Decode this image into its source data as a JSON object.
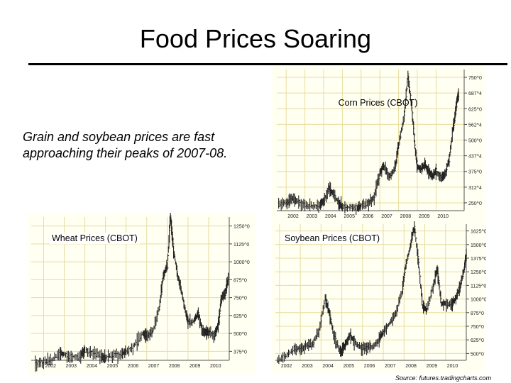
{
  "slide": {
    "title": "Food Prices Soaring",
    "subtitle": "Grain and soybean prices are fast approaching their peaks of 2007-08.",
    "source": "Source: futures.tradingcharts.com"
  },
  "colors": {
    "grid": "#e8dca0",
    "bars": "#222222",
    "background": "#fffff2"
  },
  "chart_data": [
    {
      "id": "corn",
      "type": "line",
      "title": "Corn Prices (CBOT)",
      "x": [
        2002,
        2003,
        2004,
        2005,
        2006,
        2007,
        2008,
        2009,
        2010
      ],
      "y_ticks": [
        "250^0",
        "312^4",
        "375^0",
        "437^4",
        "500^0",
        "562^4",
        "625^0",
        "687^4",
        "750^0"
      ],
      "ylim": [
        240,
        760
      ],
      "xlim": [
        2001.5,
        2011.5
      ],
      "series": [
        {
          "values": [
            [
              2001.6,
              262
            ],
            [
              2002.0,
              268
            ],
            [
              2002.3,
              285
            ],
            [
              2002.6,
              276
            ],
            [
              2003.0,
              262
            ],
            [
              2003.4,
              255
            ],
            [
              2003.8,
              258
            ],
            [
              2004.0,
              278
            ],
            [
              2004.3,
              320
            ],
            [
              2004.5,
              305
            ],
            [
              2004.8,
              268
            ],
            [
              2005.0,
              255
            ],
            [
              2005.4,
              252
            ],
            [
              2005.8,
              250
            ],
            [
              2006.0,
              260
            ],
            [
              2006.4,
              268
            ],
            [
              2006.7,
              290
            ],
            [
              2007.0,
              380
            ],
            [
              2007.2,
              405
            ],
            [
              2007.5,
              365
            ],
            [
              2007.8,
              395
            ],
            [
              2008.0,
              480
            ],
            [
              2008.3,
              590
            ],
            [
              2008.5,
              740
            ],
            [
              2008.7,
              620
            ],
            [
              2008.9,
              460
            ],
            [
              2009.0,
              400
            ],
            [
              2009.2,
              395
            ],
            [
              2009.4,
              410
            ],
            [
              2009.6,
              385
            ],
            [
              2009.8,
              365
            ],
            [
              2010.0,
              385
            ],
            [
              2010.3,
              360
            ],
            [
              2010.5,
              380
            ],
            [
              2010.7,
              430
            ],
            [
              2010.9,
              540
            ],
            [
              2011.0,
              585
            ],
            [
              2011.1,
              640
            ],
            [
              2011.2,
              670
            ]
          ]
        }
      ]
    },
    {
      "id": "wheat",
      "type": "line",
      "title": "Wheat Prices (CBOT)",
      "x": [
        2002,
        2003,
        2004,
        2005,
        2006,
        2007,
        2008,
        2009,
        2010
      ],
      "y_ticks": [
        "375^0",
        "500^0",
        "625^0",
        "750^0",
        "875^0",
        "1000^0",
        "1125^0",
        "1250^0"
      ],
      "ylim": [
        300,
        1280
      ],
      "xlim": [
        2001.4,
        2011.0
      ],
      "series": [
        {
          "values": [
            [
              2001.6,
              280
            ],
            [
              2002.0,
              285
            ],
            [
              2002.4,
              300
            ],
            [
              2002.8,
              350
            ],
            [
              2003.0,
              345
            ],
            [
              2003.4,
              320
            ],
            [
              2003.8,
              330
            ],
            [
              2004.0,
              370
            ],
            [
              2004.4,
              350
            ],
            [
              2004.8,
              320
            ],
            [
              2005.0,
              320
            ],
            [
              2005.4,
              335
            ],
            [
              2005.8,
              340
            ],
            [
              2006.0,
              360
            ],
            [
              2006.4,
              400
            ],
            [
              2006.8,
              480
            ],
            [
              2007.0,
              470
            ],
            [
              2007.3,
              500
            ],
            [
              2007.6,
              650
            ],
            [
              2007.8,
              880
            ],
            [
              2008.0,
              950
            ],
            [
              2008.15,
              1280
            ],
            [
              2008.3,
              1050
            ],
            [
              2008.5,
              880
            ],
            [
              2008.7,
              760
            ],
            [
              2008.9,
              620
            ],
            [
              2009.0,
              560
            ],
            [
              2009.3,
              570
            ],
            [
              2009.5,
              620
            ],
            [
              2009.7,
              500
            ],
            [
              2009.9,
              490
            ],
            [
              2010.0,
              490
            ],
            [
              2010.3,
              470
            ],
            [
              2010.5,
              560
            ],
            [
              2010.6,
              720
            ],
            [
              2010.8,
              760
            ],
            [
              2010.95,
              860
            ]
          ]
        }
      ]
    },
    {
      "id": "soybean",
      "type": "line",
      "title": "Soybean Prices (CBOT)",
      "x": [
        2002,
        2003,
        2004,
        2005,
        2006,
        2007,
        2008,
        2009,
        2010
      ],
      "y_ticks": [
        "500^0",
        "625^0",
        "750^0",
        "875^0",
        "1000^0",
        "1125^0",
        "1250^0",
        "1375^0",
        "1500^0",
        "1625^0"
      ],
      "ylim": [
        460,
        1640
      ],
      "xlim": [
        2001.8,
        2011.0
      ],
      "series": [
        {
          "values": [
            [
              2001.9,
              460
            ],
            [
              2002.3,
              500
            ],
            [
              2002.7,
              560
            ],
            [
              2003.0,
              560
            ],
            [
              2003.3,
              590
            ],
            [
              2003.6,
              600
            ],
            [
              2003.9,
              720
            ],
            [
              2004.2,
              1000
            ],
            [
              2004.4,
              870
            ],
            [
              2004.6,
              680
            ],
            [
              2004.9,
              540
            ],
            [
              2005.0,
              540
            ],
            [
              2005.2,
              610
            ],
            [
              2005.4,
              680
            ],
            [
              2005.6,
              620
            ],
            [
              2005.9,
              570
            ],
            [
              2006.2,
              570
            ],
            [
              2006.5,
              580
            ],
            [
              2006.8,
              640
            ],
            [
              2007.0,
              700
            ],
            [
              2007.3,
              780
            ],
            [
              2007.6,
              860
            ],
            [
              2007.9,
              1050
            ],
            [
              2008.1,
              1300
            ],
            [
              2008.3,
              1450
            ],
            [
              2008.5,
              1620
            ],
            [
              2008.7,
              1300
            ],
            [
              2008.9,
              920
            ],
            [
              2009.1,
              900
            ],
            [
              2009.4,
              1100
            ],
            [
              2009.6,
              1250
            ],
            [
              2009.8,
              950
            ],
            [
              2010.0,
              950
            ],
            [
              2010.3,
              940
            ],
            [
              2010.5,
              1000
            ],
            [
              2010.7,
              1100
            ],
            [
              2010.9,
              1250
            ],
            [
              2011.0,
              1380
            ]
          ]
        }
      ]
    }
  ]
}
